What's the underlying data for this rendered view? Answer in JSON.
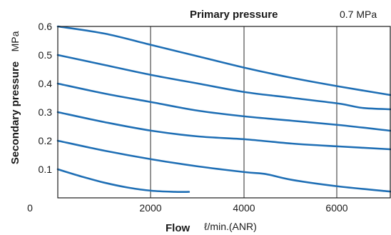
{
  "chart_data": {
    "type": "line",
    "title": "Primary pressure",
    "title_value": "0.7 MPa",
    "xlabel": "Flow",
    "xunit": "ℓ/min.(ANR)",
    "ylabel": "Secondary pressure",
    "yunit": "MPa",
    "xlim": [
      0,
      7100
    ],
    "ylim": [
      0,
      0.6
    ],
    "x_ticks": [
      "0",
      "2000",
      "4000",
      "6000"
    ],
    "y_ticks": [
      "0.1",
      "0.2",
      "0.3",
      "0.4",
      "0.5",
      "0.6"
    ],
    "grid": true,
    "series_color": "#1f6fb5",
    "series": [
      {
        "x": [
          0,
          1000,
          2000,
          3000,
          4000,
          5000,
          6000,
          7100
        ],
        "y": [
          0.6,
          0.575,
          0.535,
          0.495,
          0.455,
          0.42,
          0.39,
          0.36
        ]
      },
      {
        "x": [
          0,
          1000,
          2000,
          3000,
          4000,
          5000,
          6000,
          6500,
          7100
        ],
        "y": [
          0.5,
          0.465,
          0.43,
          0.4,
          0.37,
          0.35,
          0.33,
          0.315,
          0.31
        ]
      },
      {
        "x": [
          0,
          1000,
          2000,
          3000,
          4000,
          5000,
          6000,
          7100
        ],
        "y": [
          0.4,
          0.365,
          0.335,
          0.305,
          0.285,
          0.27,
          0.255,
          0.235
        ]
      },
      {
        "x": [
          0,
          1000,
          2000,
          3000,
          4000,
          5000,
          6000,
          7100
        ],
        "y": [
          0.3,
          0.265,
          0.235,
          0.215,
          0.205,
          0.19,
          0.18,
          0.17
        ]
      },
      {
        "x": [
          0,
          1000,
          2000,
          3000,
          4000,
          4450,
          5000,
          6000,
          7100
        ],
        "y": [
          0.2,
          0.165,
          0.135,
          0.11,
          0.09,
          0.083,
          0.063,
          0.04,
          0.022
        ]
      },
      {
        "x": [
          0,
          500,
          1000,
          1500,
          2000,
          2500,
          2800
        ],
        "y": [
          0.1,
          0.075,
          0.053,
          0.036,
          0.025,
          0.021,
          0.021
        ]
      }
    ]
  }
}
